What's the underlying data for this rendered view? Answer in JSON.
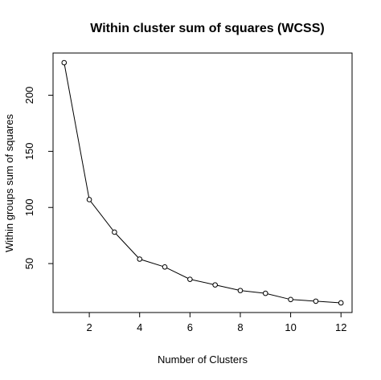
{
  "chart_data": {
    "type": "line",
    "title": "Within cluster sum of squares (WCSS)",
    "xlabel": "Number of Clusters",
    "ylabel": "Within groups sum of squares",
    "x": [
      1,
      2,
      3,
      4,
      5,
      6,
      7,
      8,
      9,
      10,
      11,
      12
    ],
    "y": [
      229,
      107,
      78,
      54,
      47,
      36,
      31,
      26,
      23.5,
      18,
      16.5,
      15
    ],
    "xlim": [
      0.56,
      12.44
    ],
    "ylim": [
      6.4,
      237.6
    ],
    "x_ticks": [
      2,
      4,
      6,
      8,
      10,
      12
    ],
    "y_ticks": [
      50,
      100,
      150,
      200
    ],
    "marker": "open-circle",
    "line_color": "#000000",
    "grid": false,
    "legend": "none"
  }
}
